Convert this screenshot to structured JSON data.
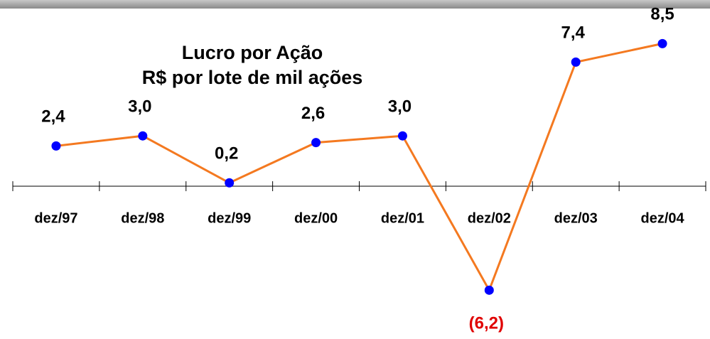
{
  "chart_data": {
    "type": "line",
    "title": [
      "Lucro por Ação",
      "R$ por lote de mil ações"
    ],
    "categories": [
      "dez/97",
      "dez/98",
      "dez/99",
      "dez/00",
      "dez/01",
      "dez/02",
      "dez/03",
      "dez/04"
    ],
    "values": [
      2.4,
      3.0,
      0.2,
      2.6,
      3.0,
      -6.2,
      7.4,
      8.5
    ],
    "value_labels": [
      "2,4",
      "3,0",
      "0,2",
      "2,6",
      "3,0",
      "(6,2)",
      "7,4",
      "8,5"
    ],
    "color": "#f47920",
    "marker_color": "#0000ff",
    "label_color": "#000000",
    "negative_label_color": "#e00000"
  }
}
